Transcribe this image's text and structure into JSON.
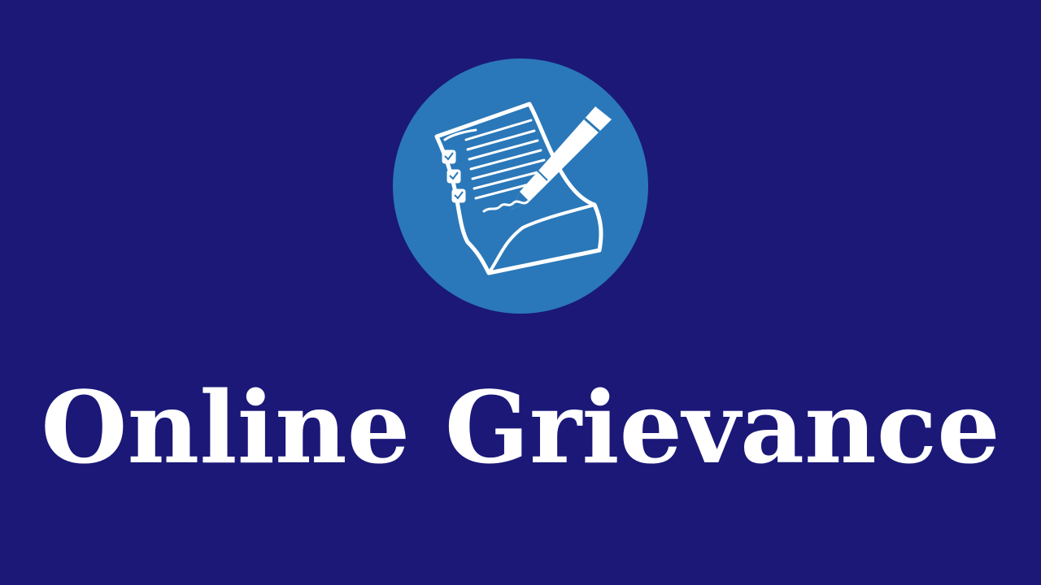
{
  "colors": {
    "background": "#1b1878",
    "circle": "#2a78b9",
    "foreground": "#ffffff"
  },
  "icon": {
    "name": "document-pen-icon"
  },
  "title": "Online Grievance"
}
